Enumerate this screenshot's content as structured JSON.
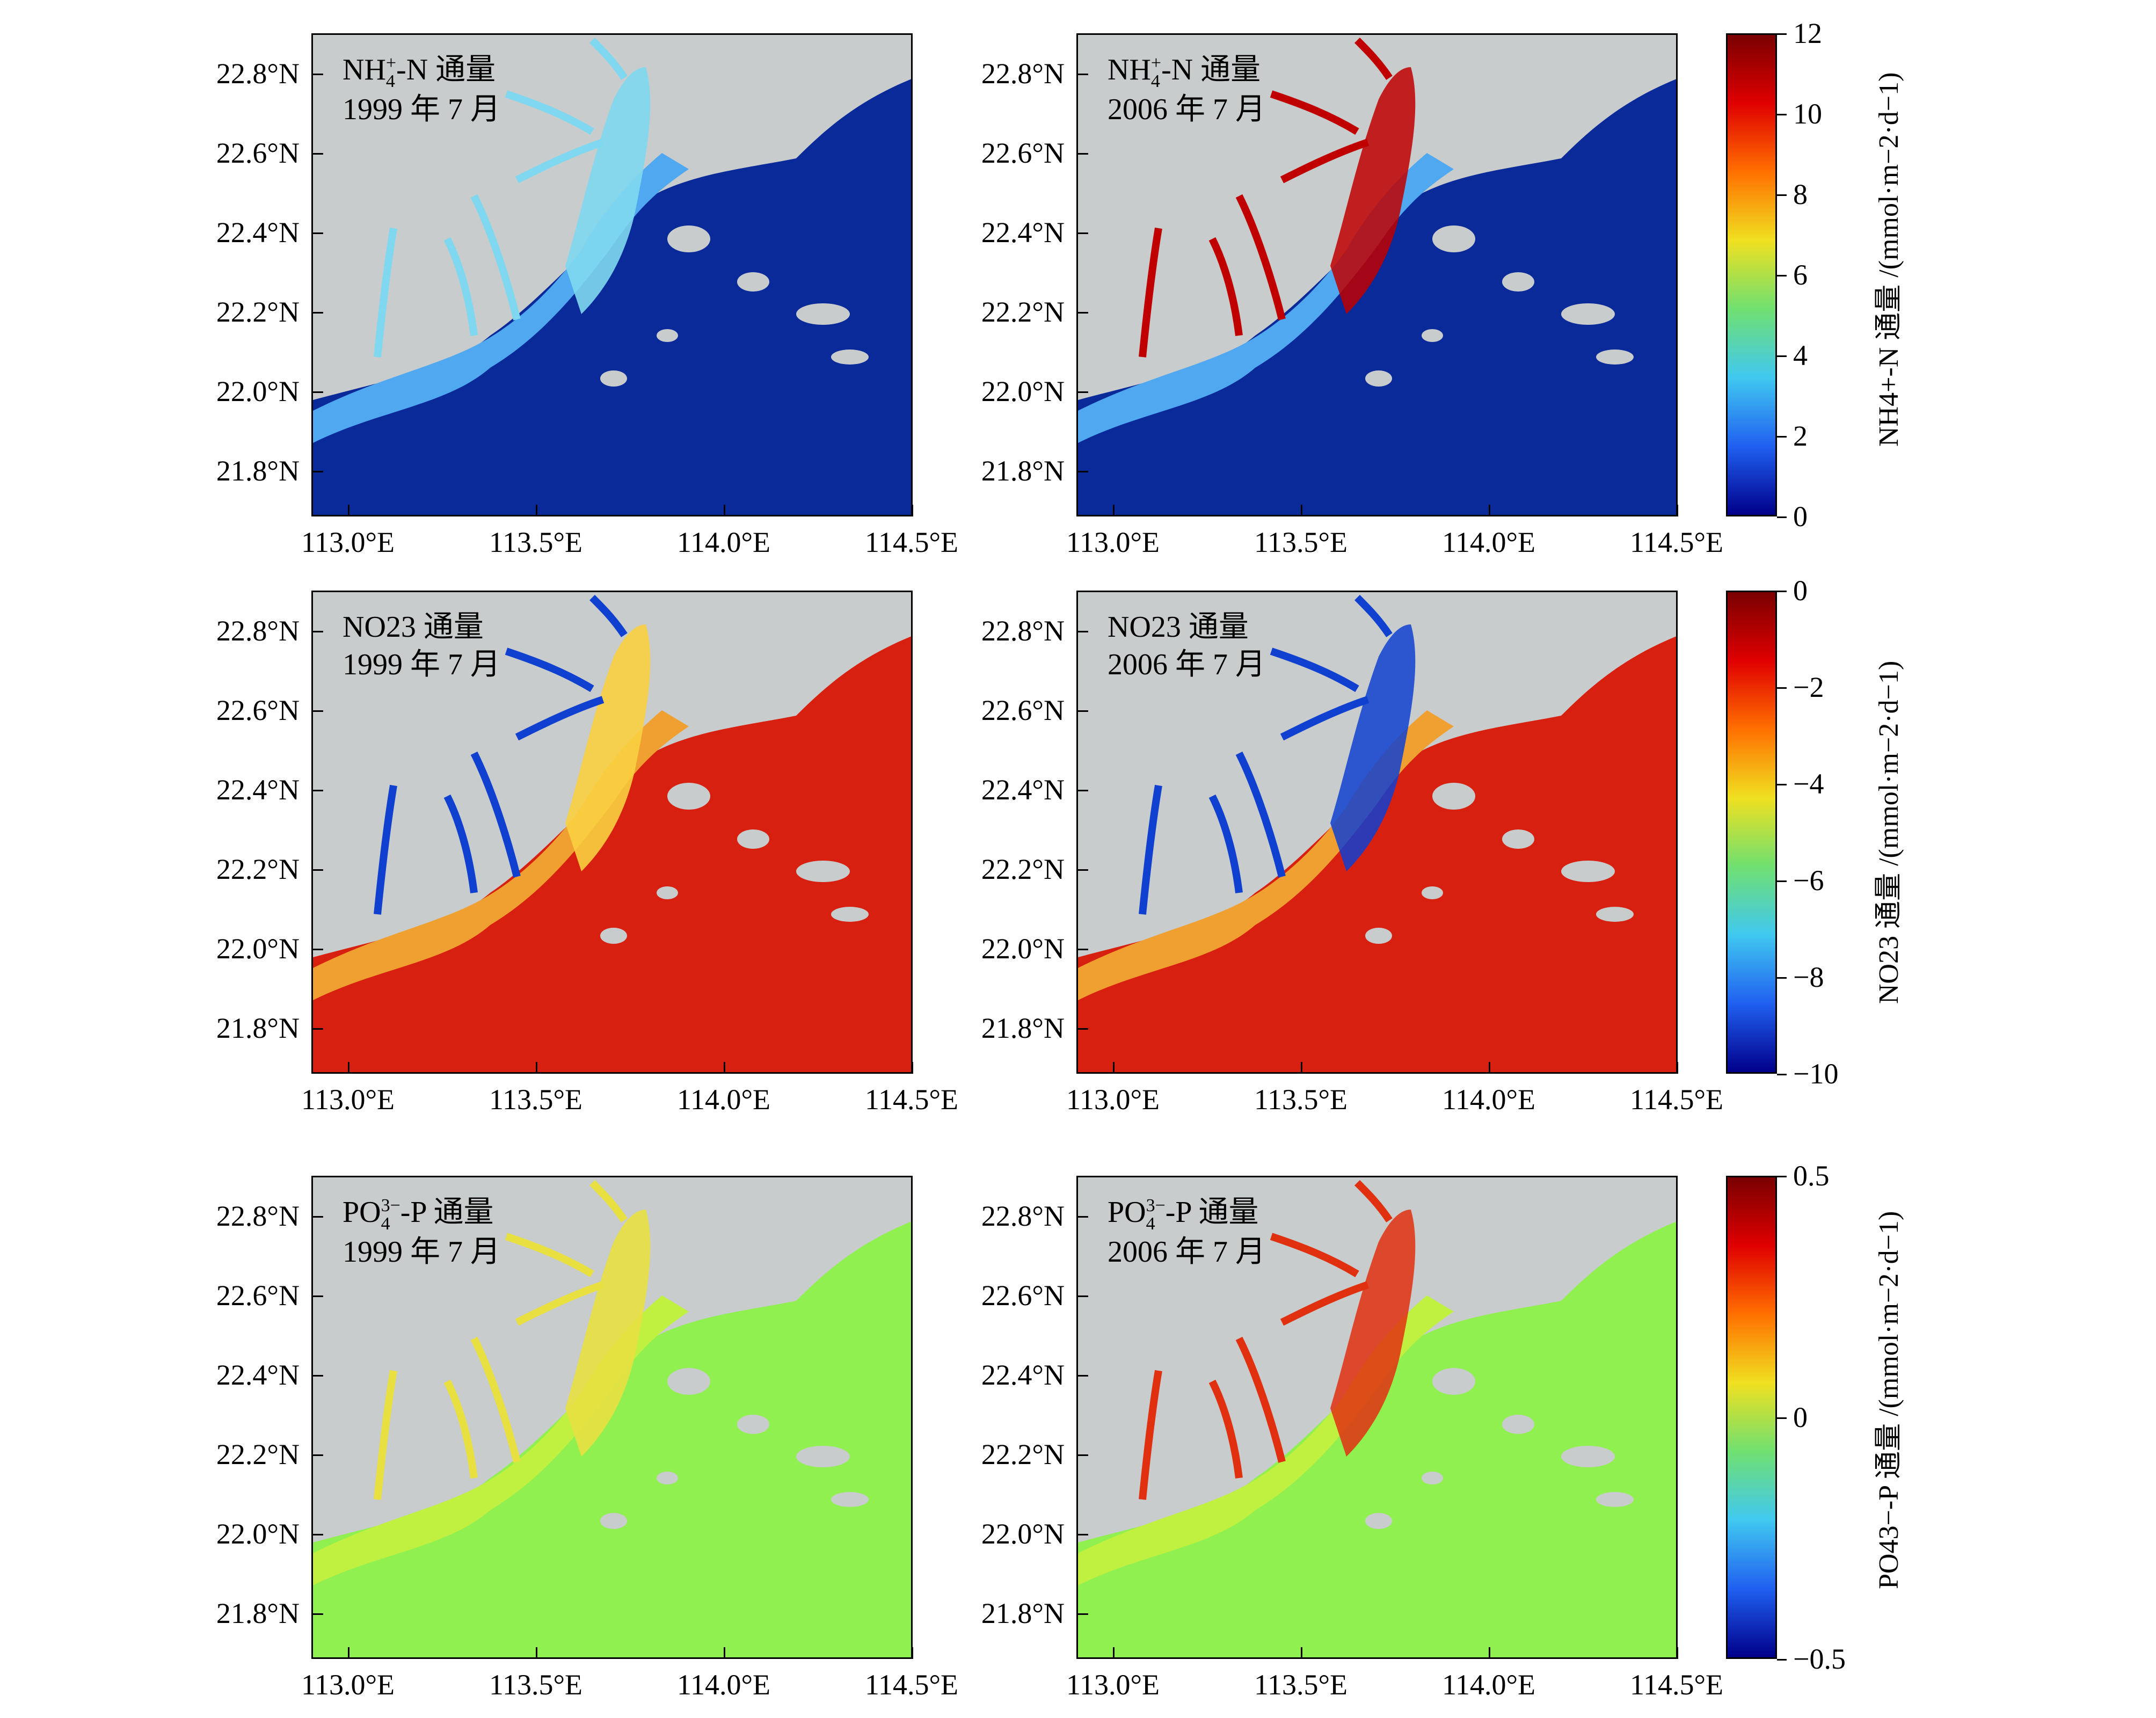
{
  "figure": {
    "lat_ticks": [
      "22.8°N",
      "22.6°N",
      "22.4°N",
      "22.2°N",
      "22.0°N",
      "21.8°N"
    ],
    "lon_ticks": [
      "113.0°E",
      "113.5°E",
      "114.0°E",
      "114.5°E"
    ],
    "rows": [
      {
        "panels": [
          {
            "label_line1": "NH",
            "sup": "+",
            "sub": "4",
            "label_suffix": "-N 通量",
            "label_line2": "1999 年 7 月"
          },
          {
            "label_line1": "NH",
            "sup": "+",
            "sub": "4",
            "label_suffix": "-N 通量",
            "label_line2": "2006 年 7 月"
          }
        ],
        "colorbar": {
          "ticks": [
            "12",
            "10",
            "8",
            "6",
            "4",
            "2",
            "0"
          ],
          "title": "NH4+-N 通量 /(mmol·m−2·d−1)"
        },
        "colors": {
          "sea": "#0a2a9a",
          "coast": "#4fa8f0",
          "plume": "#7fd8f0",
          "hot": "#c00000"
        }
      },
      {
        "panels": [
          {
            "label_line1": "NO23 通量",
            "sup": "",
            "sub": "",
            "label_suffix": "",
            "label_line2": "1999 年 7 月"
          },
          {
            "label_line1": "NO23 通量",
            "sup": "",
            "sub": "",
            "label_suffix": "",
            "label_line2": "2006 年 7 月"
          }
        ],
        "colorbar": {
          "ticks": [
            "0",
            "−2",
            "−4",
            "−6",
            "−8",
            "−10"
          ],
          "title": "NO23 通量 /(mmol·m−2·d−1)"
        },
        "colors": {
          "sea": "#d82010",
          "coast": "#f0a030",
          "plume": "#f8d040",
          "hot": "#1040d0"
        }
      },
      {
        "panels": [
          {
            "label_line1": "PO",
            "sup": "3−",
            "sub": "4",
            "label_suffix": "-P 通量",
            "label_line2": "1999 年 7 月"
          },
          {
            "label_line1": "PO",
            "sup": "3−",
            "sub": "4",
            "label_suffix": "-P 通量",
            "label_line2": "2006 年 7 月"
          }
        ],
        "colorbar": {
          "ticks": [
            "0.5",
            "0",
            "−0.5"
          ],
          "title": "PO43−-P 通量 /(mmol·m−2·d−1)"
        },
        "colors": {
          "sea": "#90f050",
          "coast": "#c0f040",
          "plume": "#e8e040",
          "hot": "#e03010"
        }
      }
    ]
  }
}
